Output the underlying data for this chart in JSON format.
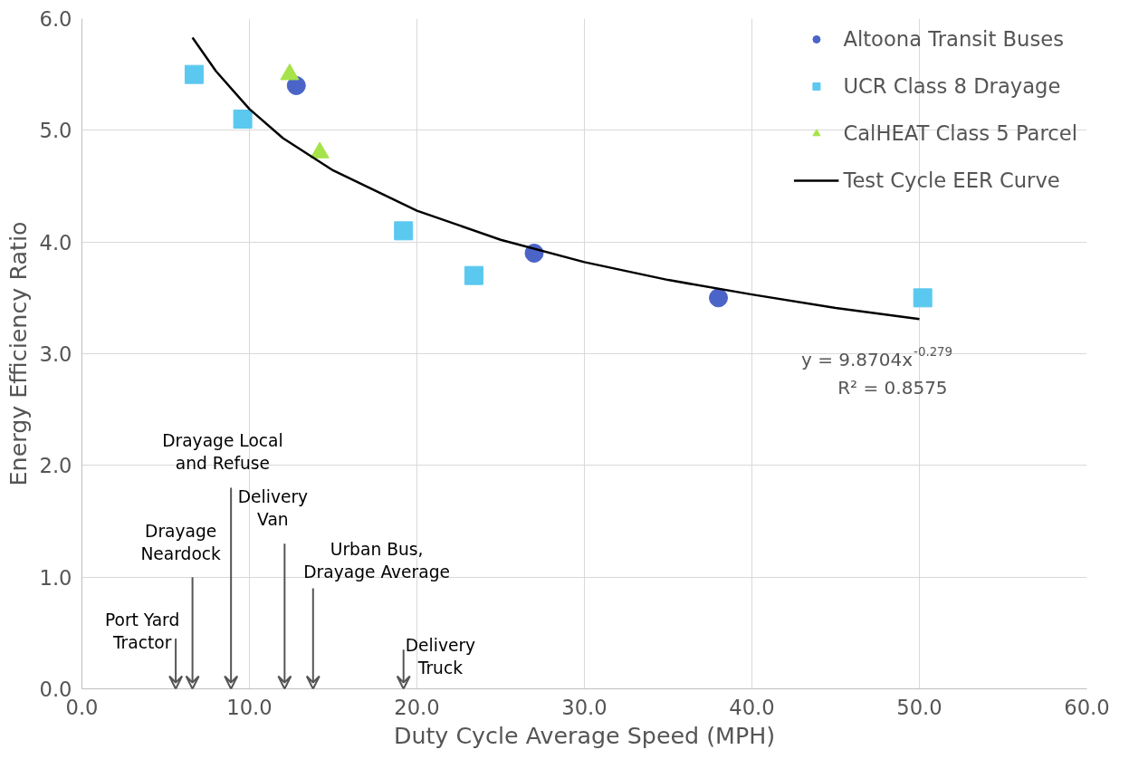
{
  "chart_data": {
    "type": "scatter",
    "xlabel": "Duty Cycle Average Speed (MPH)",
    "ylabel": "Energy Efficiency Ratio",
    "xlim": [
      0,
      60
    ],
    "ylim": [
      0,
      6
    ],
    "xticks": [
      {
        "value": 0,
        "label": "0.0"
      },
      {
        "value": 10,
        "label": "10.0"
      },
      {
        "value": 20,
        "label": "20.0"
      },
      {
        "value": 30,
        "label": "30.0"
      },
      {
        "value": 40,
        "label": "40.0"
      },
      {
        "value": 50,
        "label": "50.0"
      },
      {
        "value": 60,
        "label": "60.0"
      }
    ],
    "yticks": [
      {
        "value": 0,
        "label": "0.0"
      },
      {
        "value": 1,
        "label": "1.0"
      },
      {
        "value": 2,
        "label": "2.0"
      },
      {
        "value": 3,
        "label": "3.0"
      },
      {
        "value": 4,
        "label": "4.0"
      },
      {
        "value": 5,
        "label": "5.0"
      },
      {
        "value": 6,
        "label": "6.0"
      }
    ],
    "grid": true,
    "legend": "top right",
    "series": [
      {
        "name": "Altoona Transit Buses",
        "marker": "circle",
        "color": "#4a64c8",
        "x": [
          12.8,
          27,
          38
        ],
        "values": [
          5.4,
          3.9,
          3.5
        ]
      },
      {
        "name": "UCR Class 8 Drayage",
        "marker": "square",
        "color": "#5bc8ef",
        "x": [
          6.7,
          9.6,
          19.2,
          23.4,
          50.2
        ],
        "values": [
          5.5,
          5.1,
          4.1,
          3.7,
          3.5
        ]
      },
      {
        "name": "CalHEAT Class 5 Parcel",
        "marker": "triangle",
        "color": "#a6e34a",
        "x": [
          12.4,
          14.2
        ],
        "values": [
          5.5,
          4.8
        ]
      },
      {
        "name": "Test Cycle EER Curve",
        "type": "line",
        "line_style": "solid",
        "color": "#000000",
        "x": [
          6.6,
          8,
          10,
          12,
          15,
          20,
          25,
          30,
          35,
          40,
          45,
          50
        ],
        "values": [
          5.83,
          5.53,
          5.19,
          4.93,
          4.64,
          4.28,
          4.02,
          3.82,
          3.66,
          3.53,
          3.41,
          3.31
        ]
      }
    ],
    "annotations": [
      "Port Yard\nTractor",
      "Drayage\nNeardock",
      "Drayage Local\nand Refuse",
      "Delivery\nVan",
      "Urban Bus,\nDrayage Average",
      "Delivery\nTruck",
      "y = 9.8704x$^{-0.279}$",
      "R² = 0.8575"
    ]
  }
}
